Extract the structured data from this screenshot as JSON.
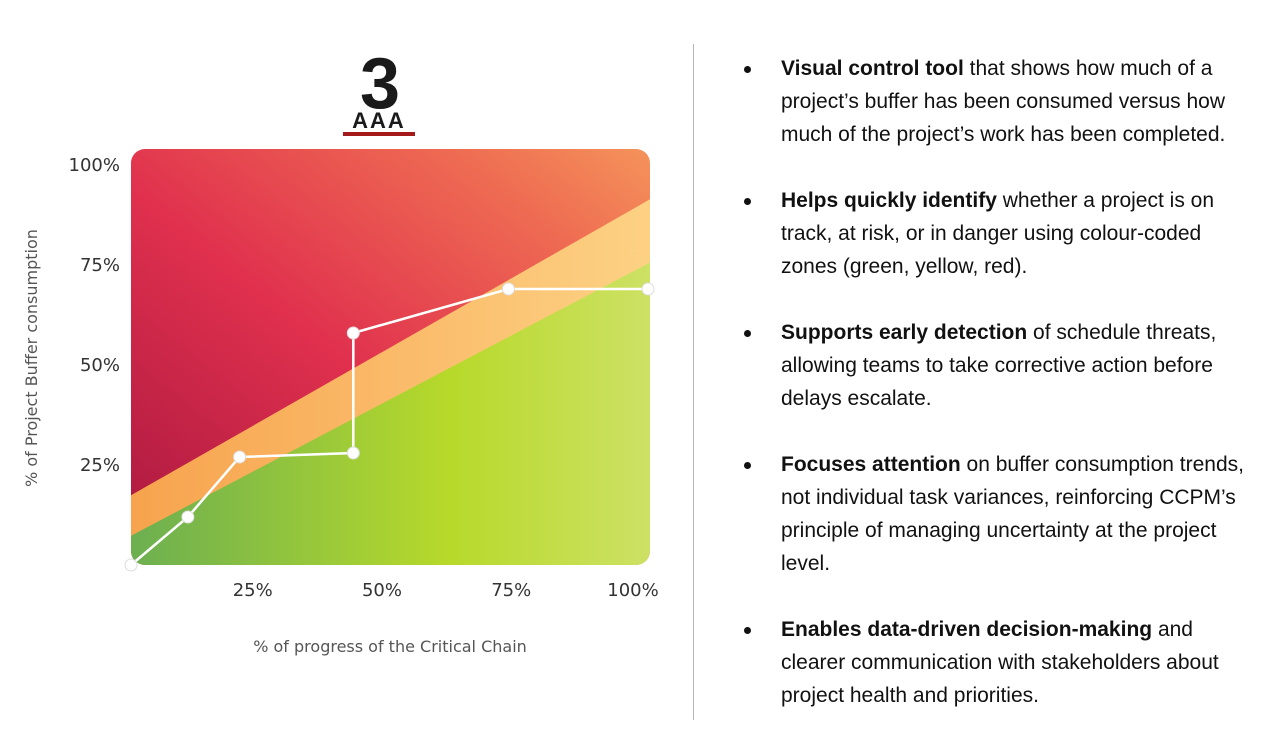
{
  "logo": {
    "number": "3",
    "letters": "AAA",
    "bar_color": "#a41a1a"
  },
  "chart_data": {
    "type": "line",
    "title": "",
    "xlabel": "% of progress of the Critical Chain",
    "ylabel": "% of Project Buffer consumption",
    "x_ticks": [
      "25%",
      "50%",
      "75%",
      "100%"
    ],
    "y_ticks": [
      "100%",
      "75%",
      "50%",
      "25%"
    ],
    "xlim": [
      0,
      100
    ],
    "ylim": [
      0,
      100
    ],
    "zones": [
      {
        "name": "green",
        "color": "#8cc63f"
      },
      {
        "name": "yellow",
        "color": "#fbb264"
      },
      {
        "name": "red",
        "color": "#e0304e"
      }
    ],
    "zone_boundaries": {
      "green_yellow": [
        [
          0,
          6
        ],
        [
          100,
          78
        ]
      ],
      "yellow_red": [
        [
          0,
          16
        ],
        [
          100,
          94
        ]
      ]
    },
    "series": [
      {
        "name": "Buffer consumption",
        "x": [
          0,
          11,
          21,
          43,
          43,
          73,
          100
        ],
        "y": [
          0,
          12,
          27,
          28,
          58,
          69,
          69
        ]
      }
    ]
  },
  "bullets": [
    {
      "strong": "Visual control tool",
      "text": " that shows how much of a project’s buffer has been consumed versus how much of the project’s work has been completed."
    },
    {
      "strong": "Helps quickly identify",
      "text": " whether a project is on track, at risk, or in danger using colour-coded zones (green, yellow, red)."
    },
    {
      "strong": "Supports early detection",
      "text": " of schedule threats, allowing teams to take corrective action before delays escalate."
    },
    {
      "strong": "Focuses attention",
      "text": " on buffer consumption trends, not individual task variances, reinforcing CCPM’s principle of managing uncertainty at the project level."
    },
    {
      "strong": "Enables data-driven decision-making",
      "text": " and clearer communication with stakeholders about project health and priorities."
    }
  ]
}
